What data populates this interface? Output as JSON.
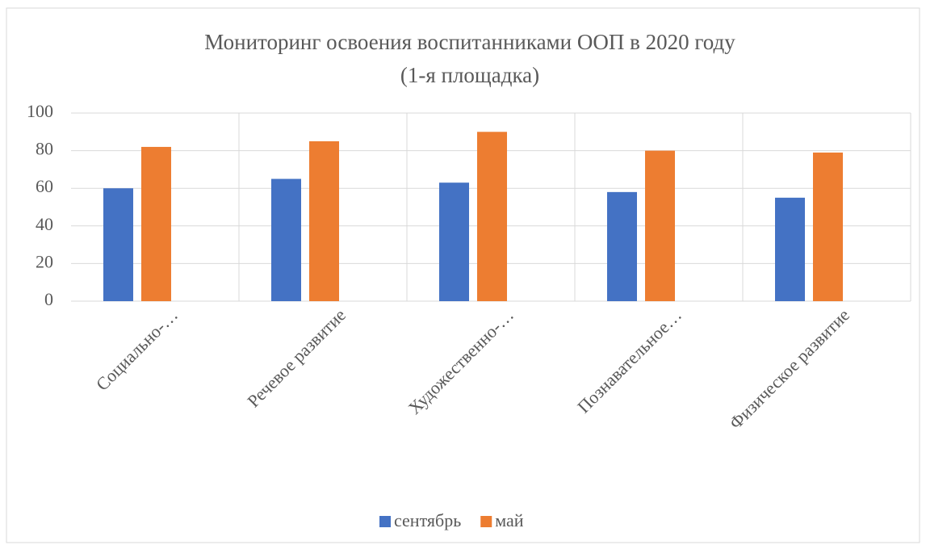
{
  "chart_data": {
    "type": "bar",
    "title": [
      "Мониторинг освоения воспитанниками ООП в 2020 году",
      "(1-я площадка)"
    ],
    "categories": [
      "Социально-…",
      "Речевое развитие",
      "Художественно-…",
      "Познавательное…",
      "Физическое развитие"
    ],
    "series": [
      {
        "name": "сентябрь",
        "color": "#4472c4",
        "values": [
          60,
          65,
          63,
          58,
          55
        ]
      },
      {
        "name": "май",
        "color": "#ed7d31",
        "values": [
          82,
          85,
          90,
          80,
          79
        ]
      }
    ],
    "ylim": [
      0,
      100
    ],
    "yticks": [
      0,
      20,
      40,
      60,
      80,
      100
    ],
    "grid": true,
    "legend": "bottom"
  }
}
